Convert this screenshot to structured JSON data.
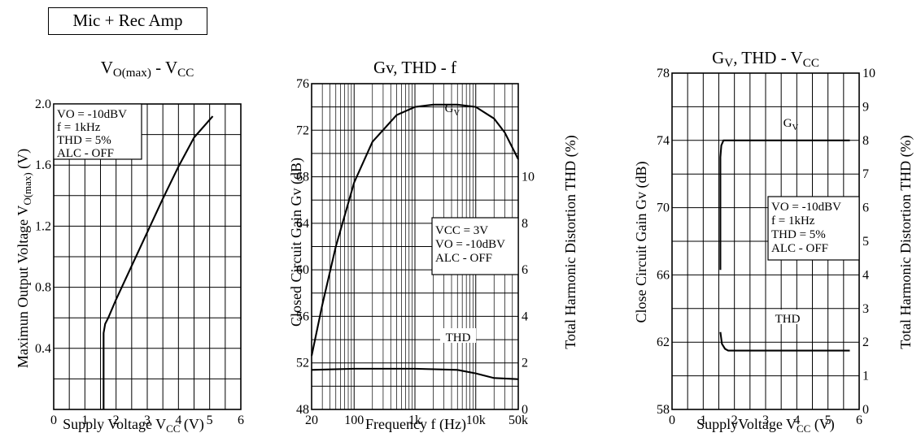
{
  "header": {
    "title": "Mic + Rec Amp"
  },
  "chart_data": [
    {
      "type": "line",
      "title": "V<sub>O(max)</sub> - V<sub>CC</sub>",
      "title_text": "VO(max) - VCC",
      "xlabel": "Supply Voltage VCC (V)",
      "ylabel": "Maximun Output Voltage VO(max) (V)",
      "xlim": [
        0,
        6
      ],
      "ylim": [
        0,
        2.0
      ],
      "x_ticks": [
        "0",
        "1",
        "2",
        "3",
        "4",
        "5",
        "6"
      ],
      "y_ticks": [
        "0.4",
        "0.8",
        "1.2",
        "1.6",
        "2.0"
      ],
      "grid": true,
      "annotation": [
        "VO = -10dBV",
        "f = 1kHz",
        "THD = 5%",
        "ALC - OFF"
      ],
      "series": [
        {
          "x": [
            1.6,
            1.6,
            1.65,
            1.75,
            2.0,
            2.5,
            3.0,
            3.5,
            4.0,
            4.5,
            5.1
          ],
          "y": [
            0.0,
            0.5,
            0.56,
            0.6,
            0.72,
            0.94,
            1.16,
            1.38,
            1.59,
            1.78,
            1.92
          ]
        }
      ]
    },
    {
      "type": "line",
      "title_text": "Gv, THD - f",
      "xlabel": "Frequency f (Hz)",
      "ylabel": "Closed Circuit Gain Gv (dB)",
      "y2label": "Total Harmonic Distortion THD (%)",
      "xscale": "log",
      "xlim": [
        20,
        50000
      ],
      "ylim": [
        48,
        76
      ],
      "y2lim": [
        0,
        14
      ],
      "x_ticks": [
        "20",
        "100",
        "1k",
        "10k",
        "50k"
      ],
      "y_ticks": [
        "48",
        "52",
        "56",
        "60",
        "64",
        "68",
        "72",
        "76"
      ],
      "y2_ticks": [
        "0",
        "2",
        "4",
        "6",
        "8",
        "10"
      ],
      "grid": true,
      "annotation": [
        "VCC = 3V",
        "VO = -10dBV",
        "ALC - OFF"
      ],
      "series": [
        {
          "name": "Gv",
          "axis": "left",
          "x": [
            20,
            30,
            50,
            100,
            200,
            500,
            1000,
            2000,
            5000,
            10000,
            20000,
            30000,
            50000
          ],
          "y": [
            52.6,
            57,
            62,
            67.5,
            71,
            73.3,
            74,
            74.2,
            74.2,
            74,
            73,
            71.8,
            69.5
          ]
        },
        {
          "name": "THD",
          "axis": "right",
          "x": [
            20,
            100,
            1000,
            5000,
            10000,
            20000,
            50000
          ],
          "y": [
            1.7,
            1.75,
            1.75,
            1.7,
            1.55,
            1.35,
            1.3
          ]
        }
      ]
    },
    {
      "type": "line",
      "title_text": "Gv, THD - VCC",
      "xlabel": "SupplyVoltage VCC (V)",
      "ylabel": "Close Circuit Gain Gv (dB)",
      "y2label": "Total Harmonic Distortion THD (%)",
      "xlim": [
        0,
        6
      ],
      "ylim": [
        58,
        78
      ],
      "y2lim": [
        0,
        10
      ],
      "x_ticks": [
        "0",
        "1",
        "2",
        "3",
        "4",
        "5",
        "6"
      ],
      "y_ticks": [
        "58",
        "62",
        "66",
        "70",
        "74",
        "78"
      ],
      "y2_ticks": [
        "0",
        "1",
        "2",
        "3",
        "4",
        "5",
        "6",
        "7",
        "8",
        "9",
        "10"
      ],
      "grid": true,
      "annotation": [
        "VO = -10dBV",
        "f = 1kHz",
        "THD = 5%",
        "ALC - OFF"
      ],
      "series": [
        {
          "name": "Gv",
          "axis": "left",
          "x": [
            1.55,
            1.55,
            1.58,
            1.65,
            1.8,
            3,
            5.7
          ],
          "y": [
            66.3,
            73.0,
            73.7,
            74.0,
            74.0,
            74.0,
            74.0
          ]
        },
        {
          "name": "THD",
          "axis": "right",
          "x": [
            1.55,
            1.6,
            1.7,
            1.8,
            2.0,
            3.0,
            5.7
          ],
          "y": [
            2.3,
            1.95,
            1.8,
            1.75,
            1.75,
            1.75,
            1.75
          ]
        }
      ]
    }
  ]
}
